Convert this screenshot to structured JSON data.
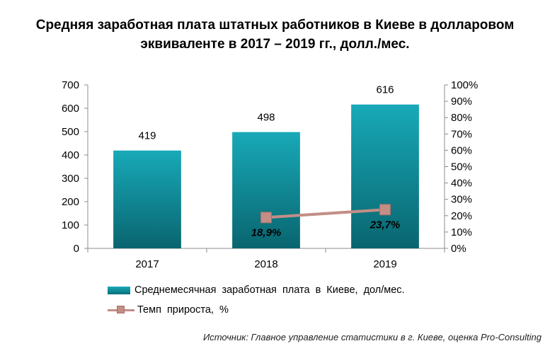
{
  "title": {
    "line1": "Средняя заработная плата штатных работников в Киеве в долларовом",
    "line2": "эквиваленте в 2017 – 2019 гг., долл./мес."
  },
  "chart_data": {
    "type": "bar",
    "categories": [
      "2017",
      "2018",
      "2019"
    ],
    "series": [
      {
        "name": "Среднемесячная заработная плата в Киеве, дол/мес.",
        "type": "bar",
        "axis": "left",
        "values": [
          419,
          498,
          616
        ],
        "data_labels": [
          "419",
          "498",
          "616"
        ],
        "color": "#0f8e9c"
      },
      {
        "name": "Темп прироста, %",
        "type": "line",
        "axis": "right",
        "values": [
          null,
          18.9,
          23.7
        ],
        "data_labels": [
          "",
          "18,9%",
          "23,7%"
        ],
        "color": "#c28e86"
      }
    ],
    "ylim_left": [
      0,
      700
    ],
    "yticks_left": [
      "0",
      "100",
      "200",
      "300",
      "400",
      "500",
      "600",
      "700"
    ],
    "ylim_right": [
      0,
      100
    ],
    "yticks_right": [
      "0%",
      "10%",
      "20%",
      "30%",
      "40%",
      "50%",
      "60%",
      "70%",
      "80%",
      "90%",
      "100%"
    ],
    "grid": false,
    "legend_position": "bottom"
  },
  "legend": {
    "bar_label": "Среднемесячная заработная плата в Киеве, дол/мес.",
    "line_label": "Темп прироста, %"
  },
  "source": "Источник: Главное управление статистики в г. Киеве, оценка Pro-Consulting"
}
